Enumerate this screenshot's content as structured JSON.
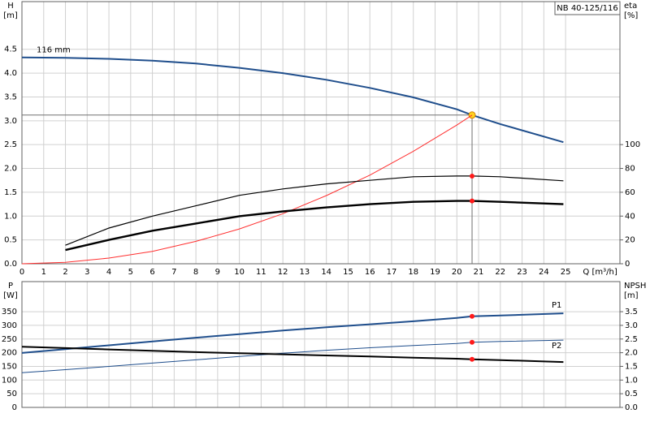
{
  "chart_data": [
    {
      "type": "line",
      "title": "NB 40-125/116",
      "ylabel": "H",
      "ylabel_unit": "[m]",
      "y2label": "eta",
      "y2label_unit": "[%]",
      "xlabel": "Q [m³/h]",
      "xlim": [
        0,
        27.5
      ],
      "ylim": [
        0,
        5.5
      ],
      "y2lim": [
        0,
        220
      ],
      "xticks": [
        0,
        1,
        2,
        3,
        4,
        5,
        6,
        7,
        8,
        9,
        10,
        11,
        12,
        13,
        14,
        15,
        16,
        17,
        18,
        19,
        20,
        21,
        22,
        23,
        24,
        25
      ],
      "yticks": [
        {
          "value": 0,
          "label": "0.0"
        },
        0.5,
        {
          "value": 1,
          "label": "1.0"
        },
        1.5,
        {
          "value": 2,
          "label": "2.0"
        },
        2.5,
        {
          "value": 3,
          "label": "3.0"
        },
        3.5,
        {
          "value": 4,
          "label": "4.0"
        },
        4.5
      ],
      "y2ticks": [
        0,
        20,
        40,
        60,
        80,
        100
      ],
      "grid": true,
      "operating_point_x": 20.7,
      "series": [
        {
          "name": "116 mm",
          "color": "#1f4e8c",
          "width": 2,
          "x": [
            0,
            2,
            4,
            6,
            8,
            10,
            12,
            14,
            16,
            18,
            20,
            20.7,
            22,
            24.9
          ],
          "values": [
            4.33,
            4.32,
            4.3,
            4.26,
            4.2,
            4.11,
            4.0,
            3.86,
            3.69,
            3.49,
            3.24,
            3.12,
            2.93,
            2.55
          ]
        },
        {
          "color": "#ff3030",
          "width": 1,
          "x": [
            0,
            2,
            4,
            6,
            8,
            10,
            12,
            14,
            16,
            18,
            20,
            20.7
          ],
          "values": [
            0,
            0.03,
            0.12,
            0.26,
            0.47,
            0.73,
            1.05,
            1.43,
            1.86,
            2.36,
            2.91,
            3.12
          ]
        },
        {
          "color": "#000000",
          "width": 1.2,
          "axis": "y2",
          "x": [
            2,
            4,
            6,
            8,
            10,
            12,
            14,
            16,
            18,
            20,
            20.7,
            22,
            24.9
          ],
          "values": [
            15.5,
            30,
            40,
            48.6,
            57.4,
            62.8,
            67,
            70,
            73,
            73.6,
            73.6,
            73,
            69.6
          ]
        },
        {
          "color": "#000000",
          "width": 2.4,
          "axis": "y2",
          "x": [
            2,
            4,
            6,
            8,
            10,
            12,
            14,
            16,
            18,
            20,
            20.7,
            22,
            24.9
          ],
          "values": [
            11.5,
            20,
            27.7,
            33.8,
            39.9,
            43.9,
            47.3,
            50,
            52,
            52.7,
            52.7,
            52,
            50
          ]
        }
      ]
    },
    {
      "type": "line",
      "ylabel": "P",
      "ylabel_unit": "[W]",
      "y2label": "NPSH",
      "y2label_unit": "[m]",
      "xlim": [
        0,
        27.5
      ],
      "ylim": [
        0,
        460
      ],
      "y2lim": [
        0,
        4.6
      ],
      "xticks": [
        0,
        1,
        2,
        3,
        4,
        5,
        6,
        7,
        8,
        9,
        10,
        11,
        12,
        13,
        14,
        15,
        16,
        17,
        18,
        19,
        20,
        21,
        22,
        23,
        24,
        25
      ],
      "yticks": [
        0,
        50,
        100,
        150,
        200,
        250,
        300,
        350
      ],
      "y2ticks": [
        {
          "value": 0,
          "label": "0.0"
        },
        0.5,
        {
          "value": 1,
          "label": "1.0"
        },
        1.5,
        {
          "value": 2,
          "label": "2.0"
        },
        2.5,
        {
          "value": 3,
          "label": "3.0"
        },
        3.5
      ],
      "grid": true,
      "operating_point_x": 20.7,
      "series": [
        {
          "name": "P1",
          "color": "#1f4e8c",
          "width": 2,
          "x": [
            0,
            2,
            4,
            6,
            8,
            10,
            12,
            14,
            16,
            18,
            20,
            20.7,
            22,
            24.9
          ],
          "values": [
            199,
            213,
            227,
            241,
            255,
            268,
            281,
            293,
            304,
            315,
            327,
            333,
            336,
            344
          ]
        },
        {
          "name": "P2",
          "color": "#1f4e8c",
          "width": 1,
          "x": [
            0,
            2,
            4,
            6,
            8,
            10,
            12,
            14,
            16,
            18,
            20,
            20.7,
            22,
            24.9
          ],
          "values": [
            127,
            138,
            150,
            162,
            174,
            186,
            198,
            209,
            218,
            226,
            234,
            238,
            241,
            246
          ]
        },
        {
          "color": "#000000",
          "width": 2,
          "axis": "y2",
          "x": [
            0,
            2,
            4,
            6,
            8,
            10,
            12,
            14,
            16,
            18,
            20,
            20.7,
            22,
            24.9
          ],
          "values": [
            2.22,
            2.17,
            2.12,
            2.07,
            2.02,
            1.98,
            1.94,
            1.9,
            1.86,
            1.82,
            1.78,
            1.76,
            1.73,
            1.66
          ]
        }
      ]
    }
  ]
}
